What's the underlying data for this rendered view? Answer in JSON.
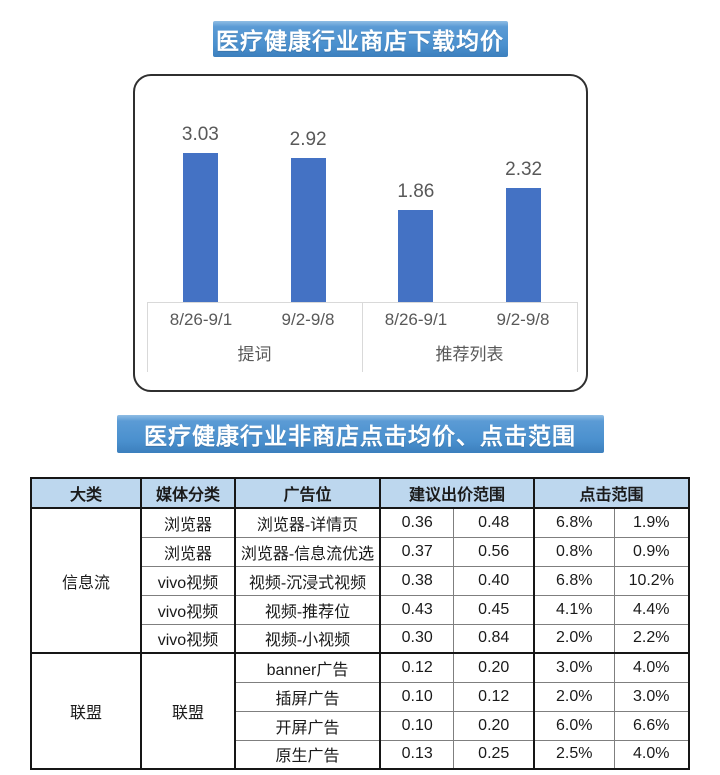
{
  "colors": {
    "bar": "#4472C4",
    "banner_blue": "#5B9BD5",
    "table_header_bg": "#BDD7EE",
    "axis_line": "#D9D9D9",
    "label_gray": "#595959"
  },
  "chart_data": [
    {
      "type": "bar",
      "title": "医疗健康行业商店下载均价",
      "groups": [
        {
          "label": "提词",
          "categories": [
            "8/26-9/1",
            "9/2-9/8"
          ],
          "values": [
            3.03,
            2.92
          ]
        },
        {
          "label": "推荐列表",
          "categories": [
            "8/26-9/1",
            "9/2-9/8"
          ],
          "values": [
            1.86,
            2.32
          ]
        }
      ],
      "bar_color": "#4472C4",
      "xlabel": "",
      "ylabel": "",
      "ylim": [
        0,
        3.5
      ],
      "grid": false,
      "legend": "none",
      "data_labels": true
    },
    {
      "type": "table",
      "title": "医疗健康行业非商店点击均价、点击范围",
      "columns": [
        "大类",
        "媒体分类",
        "广告位",
        "建议出价范围",
        "点击范围"
      ],
      "column_spans": [
        1,
        1,
        1,
        2,
        2
      ],
      "sections": [
        {
          "category": "信息流",
          "rows": [
            {
              "media": "浏览器",
              "placement": "浏览器-详情页",
              "bid": [
                "0.36",
                "0.48"
              ],
              "click": [
                "6.8%",
                "1.9%"
              ]
            },
            {
              "media": "浏览器",
              "placement": "浏览器-信息流优选",
              "bid": [
                "0.37",
                "0.56"
              ],
              "click": [
                "0.8%",
                "0.9%"
              ]
            },
            {
              "media": "vivo视频",
              "placement": "视频-沉浸式视频",
              "bid": [
                "0.38",
                "0.40"
              ],
              "click": [
                "6.8%",
                "10.2%"
              ]
            },
            {
              "media": "vivo视频",
              "placement": "视频-推荐位",
              "bid": [
                "0.43",
                "0.45"
              ],
              "click": [
                "4.1%",
                "4.4%"
              ]
            },
            {
              "media": "vivo视频",
              "placement": "视频-小视频",
              "bid": [
                "0.30",
                "0.84"
              ],
              "click": [
                "2.0%",
                "2.2%"
              ]
            }
          ]
        },
        {
          "category": "联盟",
          "media_merged": "联盟",
          "rows": [
            {
              "placement": "banner广告",
              "bid": [
                "0.12",
                "0.20"
              ],
              "click": [
                "3.0%",
                "4.0%"
              ]
            },
            {
              "placement": "插屏广告",
              "bid": [
                "0.10",
                "0.12"
              ],
              "click": [
                "2.0%",
                "3.0%"
              ]
            },
            {
              "placement": "开屏广告",
              "bid": [
                "0.10",
                "0.20"
              ],
              "click": [
                "6.0%",
                "6.6%"
              ]
            },
            {
              "placement": "原生广告",
              "bid": [
                "0.13",
                "0.25"
              ],
              "click": [
                "2.5%",
                "4.0%"
              ]
            }
          ]
        }
      ]
    }
  ]
}
